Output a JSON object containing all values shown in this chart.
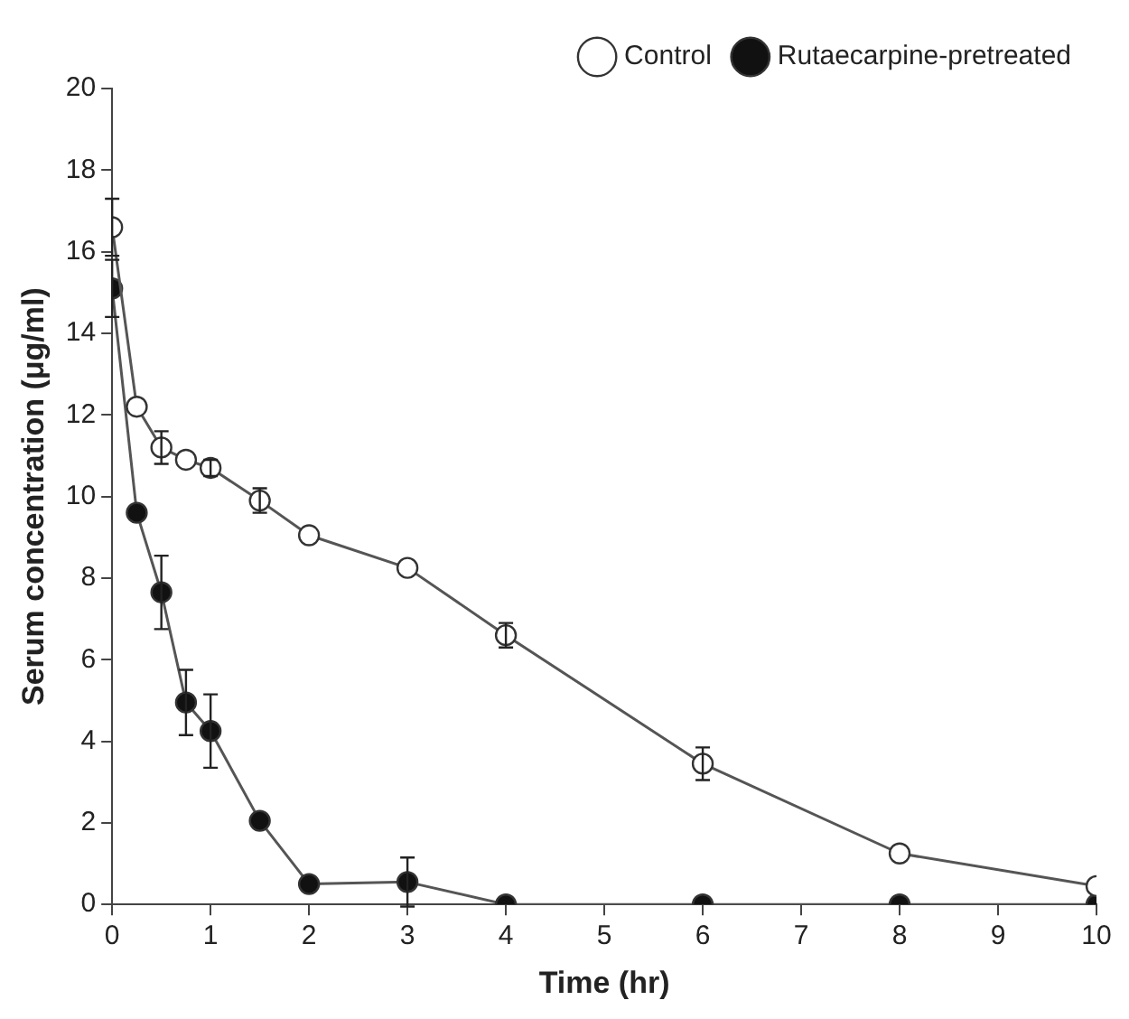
{
  "chart_data": {
    "type": "line",
    "xlabel": "Time (hr)",
    "ylabel": "Serum concentration (μg/ml)",
    "x": [
      0,
      0.25,
      0.5,
      0.75,
      1,
      1.5,
      2,
      3,
      4,
      6,
      8,
      10
    ],
    "xlim": [
      0,
      10
    ],
    "xticks": [
      0,
      1,
      2,
      3,
      4,
      5,
      6,
      7,
      8,
      9,
      10
    ],
    "ylim": [
      0,
      20
    ],
    "yticks": [
      0,
      2,
      4,
      6,
      8,
      10,
      12,
      14,
      16,
      18,
      20
    ],
    "grid": false,
    "legend": "top right",
    "marker": "circle",
    "line_style": "solid",
    "series": [
      {
        "name": "Control",
        "color": "#ffffff",
        "values": [
          16.6,
          12.2,
          11.2,
          10.9,
          10.7,
          9.9,
          9.05,
          8.25,
          6.6,
          3.45,
          1.25,
          0.45
        ],
        "errors": [
          0.7,
          null,
          0.4,
          null,
          0.2,
          0.3,
          null,
          null,
          0.3,
          0.4,
          null,
          null
        ]
      },
      {
        "name": "Rutaecarpine-pretreated",
        "color": "#111111",
        "values": [
          15.1,
          9.6,
          7.65,
          4.95,
          4.25,
          2.05,
          0.5,
          0.55,
          0,
          0,
          0,
          0
        ],
        "errors": [
          0.7,
          null,
          0.9,
          0.8,
          0.9,
          null,
          null,
          0.6,
          null,
          null,
          null,
          null
        ]
      }
    ]
  }
}
